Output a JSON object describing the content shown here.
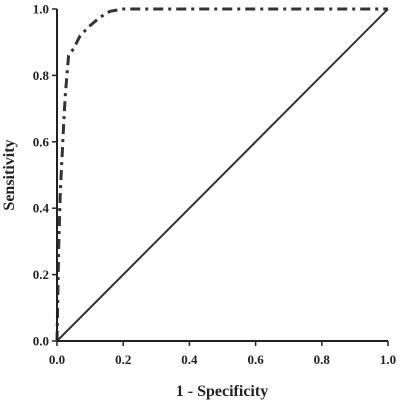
{
  "chart_data": {
    "type": "line",
    "title": "",
    "xlabel": "1 - Specificity",
    "ylabel": "Sensitivity",
    "xlim": [
      0,
      1
    ],
    "ylim": [
      0,
      1
    ],
    "x_ticks": [
      "0.0",
      "0.2",
      "0.4",
      "0.6",
      "0.8",
      "1.0"
    ],
    "y_ticks": [
      "0.0",
      "0.2",
      "0.4",
      "0.6",
      "0.8",
      "1.0"
    ],
    "grid": false,
    "legend": "none",
    "colors": {
      "axis": "#222222",
      "curve": "#333333",
      "reference": "#333333"
    },
    "series": [
      {
        "style": "dash-dot",
        "x": [
          0.0,
          0.005,
          0.01,
          0.015,
          0.02,
          0.025,
          0.03,
          0.035,
          0.05,
          0.07,
          0.1,
          0.13,
          0.16,
          0.2,
          0.3,
          0.5,
          0.75,
          1.0
        ],
        "y": [
          0.0,
          0.28,
          0.45,
          0.55,
          0.65,
          0.74,
          0.8,
          0.86,
          0.88,
          0.92,
          0.95,
          0.975,
          0.993,
          1.0,
          1.0,
          1.0,
          1.0,
          1.0
        ]
      },
      {
        "style": "solid",
        "x": [
          0.0,
          1.0
        ],
        "y": [
          0.0,
          1.0
        ]
      }
    ]
  }
}
